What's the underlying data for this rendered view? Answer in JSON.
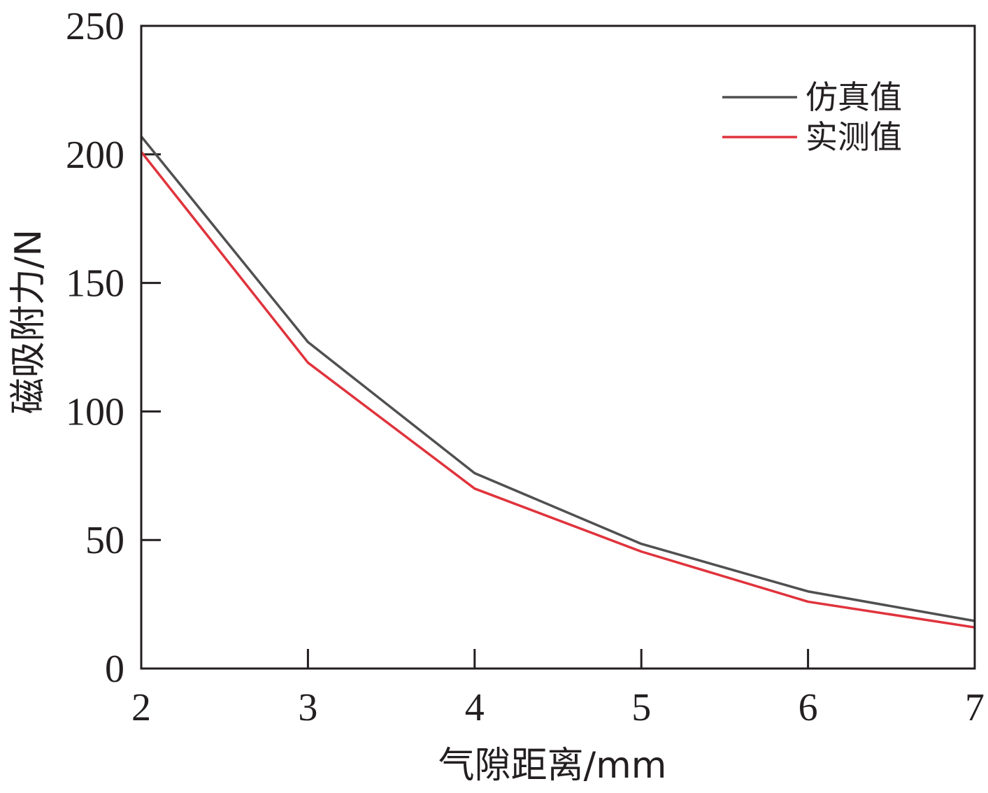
{
  "chart_data": {
    "type": "line",
    "title": "",
    "xlabel": "气隙距离/mm",
    "ylabel": "磁吸附力/N",
    "x": [
      2,
      3,
      4,
      5,
      6,
      7
    ],
    "xlim": [
      2,
      7
    ],
    "ylim": [
      0,
      250
    ],
    "xticks": [
      "2",
      "3",
      "4",
      "5",
      "6",
      "7"
    ],
    "yticks": [
      "0",
      "50",
      "100",
      "150",
      "200",
      "250"
    ],
    "grid": false,
    "legend_position": "top-right",
    "series": [
      {
        "name": "仿真值",
        "color": "#505050",
        "values": [
          207,
          127,
          76,
          48.5,
          30,
          18.5
        ]
      },
      {
        "name": "实测值",
        "color": "#e0333c",
        "values": [
          201,
          119,
          70,
          45.5,
          26,
          16
        ]
      }
    ]
  }
}
